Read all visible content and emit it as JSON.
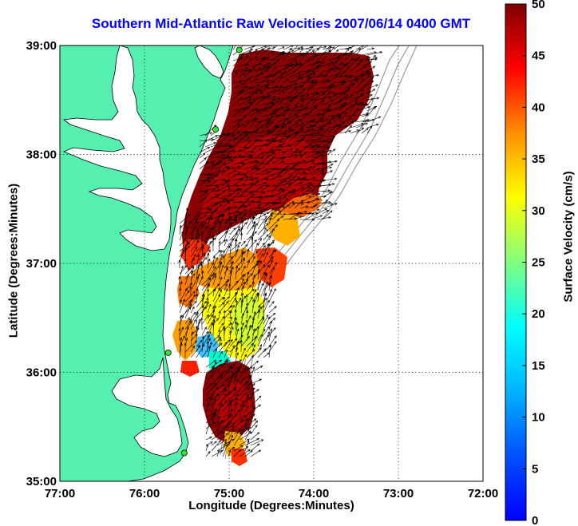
{
  "title": "Southern Mid-Atlantic Raw Velocities 2007/06/14 0400 GMT",
  "xlabel": "Longitude (Degrees:Minutes)",
  "ylabel": "Latitude (Degrees:Minutes)",
  "colorbar": {
    "label": "Surface Velocity (cm/s)",
    "ticks": [
      "0",
      "5",
      "10",
      "15",
      "20",
      "25",
      "30",
      "35",
      "40",
      "45",
      "50"
    ],
    "range": [
      0,
      50
    ],
    "colormap": "jet"
  },
  "chart_data": {
    "type": "heatmap",
    "title": "Southern Mid-Atlantic Raw Velocities 2007/06/14 0400 GMT",
    "xlabel": "Longitude (Degrees:Minutes)",
    "ylabel": "Latitude (Degrees:Minutes)",
    "xlim": [
      -77,
      -72
    ],
    "ylim": [
      35,
      39
    ],
    "xticks": [
      "77:00",
      "76:00",
      "75:00",
      "74:00",
      "73:00",
      "72:00"
    ],
    "yticks": [
      "35:00",
      "36:00",
      "37:00",
      "38:00",
      "39:00"
    ],
    "grid": true,
    "land_color": "#55f0b0",
    "vector_color": "#000000",
    "stations": [
      {
        "lon": -74.88,
        "lat": 38.96
      },
      {
        "lon": -75.16,
        "lat": 38.23
      },
      {
        "lon": -75.72,
        "lat": 36.18
      },
      {
        "lon": -75.53,
        "lat": 35.26
      }
    ]
  }
}
